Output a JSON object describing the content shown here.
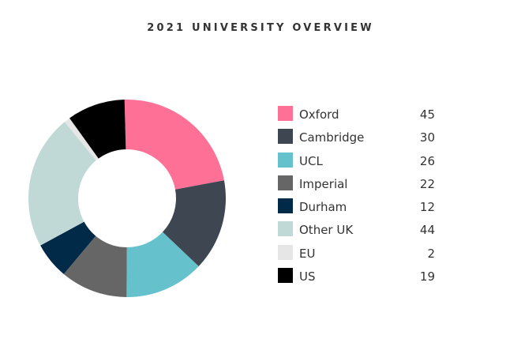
{
  "chart_data": {
    "type": "pie",
    "title": "2021 UNIVERSITY OVERVIEW",
    "donut": true,
    "categories": [
      "Oxford",
      "Cambridge",
      "UCL",
      "Imperial",
      "Durham",
      "Other UK",
      "EU",
      "US"
    ],
    "values": [
      45,
      30,
      26,
      22,
      12,
      44,
      2,
      19
    ],
    "colors": [
      "#ff7096",
      "#3e4651",
      "#65c1cb",
      "#666666",
      "#002a48",
      "#c1d9d6",
      "#e6e6e6",
      "#000000"
    ],
    "legend_position": "right"
  }
}
